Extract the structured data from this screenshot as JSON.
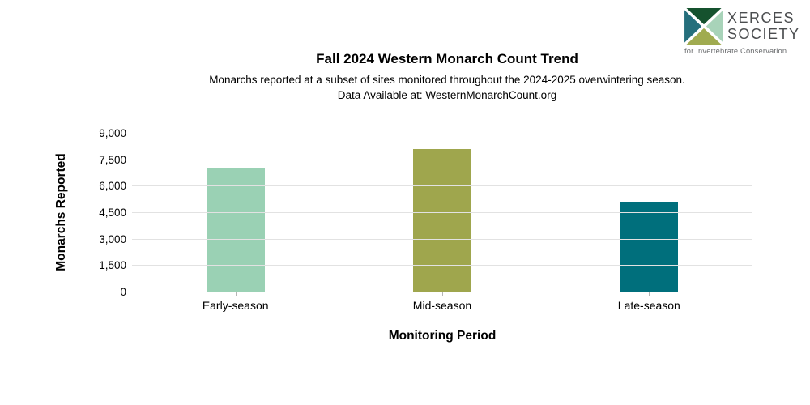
{
  "logo": {
    "name_line1": "XERCES",
    "name_line2": "SOCIETY",
    "tagline": "for Invertebrate Conservation",
    "text_color": "#4b4d4f",
    "mark_colors": {
      "left_triangle": "#256f7c",
      "top_triangle": "#15522e",
      "right_triangle": "#a8d3b9",
      "bottom_triangle": "#a0ab50"
    }
  },
  "chart_data": {
    "type": "bar",
    "title": "Fall 2024 Western Monarch Count Trend",
    "subtitle_line1": "Monarchs reported at a subset of sites monitored throughout the 2024-2025 overwintering season.",
    "subtitle_line2": "Data Available at: WesternMonarchCount.org",
    "categories": [
      "Early-season",
      "Mid-season",
      "Late-season"
    ],
    "values": [
      7050,
      8150,
      5150
    ],
    "bar_colors": [
      "#9ad1b4",
      "#9fa64d",
      "#006f7c"
    ],
    "xlabel": "Monitoring Period",
    "ylabel": "Monarchs Reported",
    "ylim": [
      0,
      9000
    ],
    "ytick_interval": 1500,
    "ytick_labels": [
      "0",
      "1,500",
      "3,000",
      "4,500",
      "6,000",
      "7,500",
      "9,000"
    ],
    "grid": "horizontal-only",
    "legend": "none",
    "gridline_color": "#e2e2e2",
    "axisline_color": "#a6a6a6"
  }
}
